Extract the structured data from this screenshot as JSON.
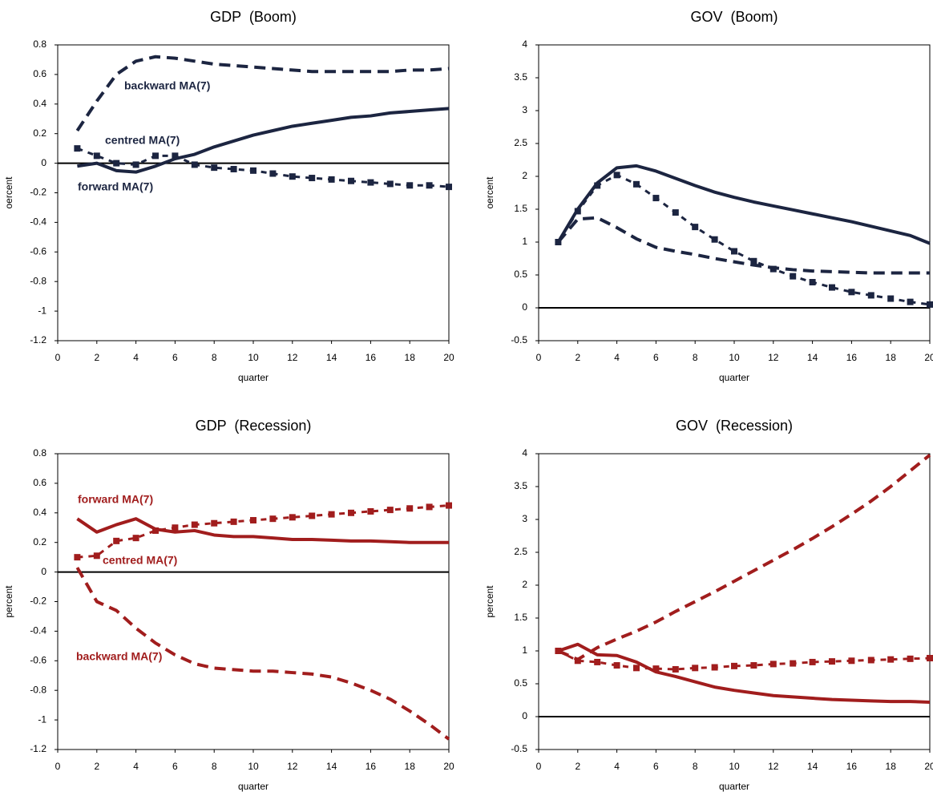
{
  "chart_data": [
    {
      "type": "line",
      "title": "GDP  (Boom)",
      "x_label": "quarter",
      "y_label": "oercent",
      "x": [
        1,
        2,
        3,
        4,
        5,
        6,
        7,
        8,
        9,
        10,
        11,
        12,
        13,
        14,
        15,
        16,
        17,
        18,
        19,
        20
      ],
      "xlim": [
        0,
        20
      ],
      "xticks": [
        0,
        2,
        4,
        6,
        8,
        10,
        12,
        14,
        16,
        18,
        20
      ],
      "ylim": [
        -1.2,
        0.8
      ],
      "yticks": [
        -1.2,
        -1,
        -0.8,
        -0.6,
        -0.4,
        -0.2,
        0,
        0.2,
        0.4,
        0.6,
        0.8
      ],
      "series": [
        {
          "name": "backward MA(7)",
          "color": "#1c2541",
          "line_style": "dashed",
          "values": [
            0.22,
            0.42,
            0.6,
            0.69,
            0.72,
            0.71,
            0.69,
            0.67,
            0.66,
            0.65,
            0.64,
            0.63,
            0.62,
            0.62,
            0.62,
            0.62,
            0.62,
            0.63,
            0.63,
            0.64
          ]
        },
        {
          "name": "centred MA(7)",
          "color": "#1c2541",
          "line_style": "dotted-square",
          "values": [
            0.1,
            0.05,
            0.0,
            -0.01,
            0.05,
            0.05,
            -0.01,
            -0.03,
            -0.04,
            -0.05,
            -0.07,
            -0.09,
            -0.1,
            -0.11,
            -0.12,
            -0.13,
            -0.14,
            -0.15,
            -0.15,
            -0.16
          ]
        },
        {
          "name": "forward MA(7)",
          "color": "#1c2541",
          "line_style": "solid",
          "values": [
            -0.02,
            0.0,
            -0.05,
            -0.06,
            -0.02,
            0.03,
            0.06,
            0.11,
            0.15,
            0.19,
            0.22,
            0.25,
            0.27,
            0.29,
            0.31,
            0.32,
            0.34,
            0.35,
            0.36,
            0.37
          ]
        }
      ]
    },
    {
      "type": "line",
      "title": "GOV  (Boom)",
      "x_label": "quarter",
      "y_label": "oercent",
      "x": [
        1,
        2,
        3,
        4,
        5,
        6,
        7,
        8,
        9,
        10,
        11,
        12,
        13,
        14,
        15,
        16,
        17,
        18,
        19,
        20
      ],
      "xlim": [
        0,
        20
      ],
      "xticks": [
        0,
        2,
        4,
        6,
        8,
        10,
        12,
        14,
        16,
        18,
        20
      ],
      "ylim": [
        -0.5,
        4
      ],
      "yticks": [
        -0.5,
        0,
        0.5,
        1,
        1.5,
        2,
        2.5,
        3,
        3.5,
        4
      ],
      "series": [
        {
          "color": "#1c2541",
          "line_style": "solid",
          "values": [
            1,
            1.5,
            1.9,
            2.13,
            2.16,
            2.08,
            1.97,
            1.86,
            1.76,
            1.68,
            1.61,
            1.55,
            1.49,
            1.43,
            1.37,
            1.31,
            1.24,
            1.17,
            1.1,
            0.98
          ]
        },
        {
          "color": "#1c2541",
          "line_style": "dotted-square",
          "values": [
            1,
            1.47,
            1.86,
            2.02,
            1.88,
            1.67,
            1.45,
            1.23,
            1.04,
            0.86,
            0.71,
            0.59,
            0.48,
            0.39,
            0.31,
            0.24,
            0.19,
            0.14,
            0.09,
            0.05
          ]
        },
        {
          "color": "#1c2541",
          "line_style": "dashed",
          "values": [
            1,
            1.35,
            1.37,
            1.22,
            1.05,
            0.92,
            0.86,
            0.81,
            0.75,
            0.7,
            0.65,
            0.61,
            0.58,
            0.56,
            0.55,
            0.54,
            0.53,
            0.53,
            0.53,
            0.53
          ]
        }
      ]
    },
    {
      "type": "line",
      "title": "GDP  (Recession)",
      "x_label": "quarter",
      "y_label": "percent",
      "x": [
        1,
        2,
        3,
        4,
        5,
        6,
        7,
        8,
        9,
        10,
        11,
        12,
        13,
        14,
        15,
        16,
        17,
        18,
        19,
        20
      ],
      "xlim": [
        0,
        20
      ],
      "xticks": [
        0,
        2,
        4,
        6,
        8,
        10,
        12,
        14,
        16,
        18,
        20
      ],
      "ylim": [
        -1.2,
        0.8
      ],
      "yticks": [
        -1.2,
        -1,
        -0.8,
        -0.6,
        -0.4,
        -0.2,
        0,
        0.2,
        0.4,
        0.6,
        0.8
      ],
      "series": [
        {
          "name": "forward MA(7)",
          "color": "#a11d1d",
          "line_style": "solid",
          "values": [
            0.36,
            0.27,
            0.32,
            0.36,
            0.29,
            0.27,
            0.28,
            0.25,
            0.24,
            0.24,
            0.23,
            0.22,
            0.22,
            0.215,
            0.21,
            0.21,
            0.205,
            0.2,
            0.2,
            0.2
          ]
        },
        {
          "name": "centred MA(7)",
          "color": "#a11d1d",
          "line_style": "dotted-square",
          "values": [
            0.1,
            0.11,
            0.21,
            0.23,
            0.28,
            0.3,
            0.32,
            0.33,
            0.34,
            0.35,
            0.36,
            0.37,
            0.38,
            0.39,
            0.4,
            0.41,
            0.42,
            0.43,
            0.44,
            0.45
          ]
        },
        {
          "name": "backward MA(7)",
          "color": "#a11d1d",
          "line_style": "dashed",
          "values": [
            0.03,
            -0.2,
            -0.26,
            -0.38,
            -0.48,
            -0.56,
            -0.62,
            -0.65,
            -0.66,
            -0.67,
            -0.67,
            -0.68,
            -0.69,
            -0.71,
            -0.75,
            -0.8,
            -0.86,
            -0.94,
            -1.03,
            -1.13
          ]
        }
      ]
    },
    {
      "type": "line",
      "title": "GOV  (Recession)",
      "x_label": "quarter",
      "y_label": "percent",
      "x": [
        1,
        2,
        3,
        4,
        5,
        6,
        7,
        8,
        9,
        10,
        11,
        12,
        13,
        14,
        15,
        16,
        17,
        18,
        19,
        20
      ],
      "xlim": [
        0,
        20
      ],
      "xticks": [
        0,
        2,
        4,
        6,
        8,
        10,
        12,
        14,
        16,
        18,
        20
      ],
      "ylim": [
        -0.5,
        4
      ],
      "yticks": [
        -0.5,
        0,
        0.5,
        1,
        1.5,
        2,
        2.5,
        3,
        3.5,
        4
      ],
      "series": [
        {
          "color": "#a11d1d",
          "line_style": "dashed",
          "values": [
            1,
            0.87,
            1.05,
            1.18,
            1.3,
            1.44,
            1.6,
            1.75,
            1.9,
            2.06,
            2.22,
            2.38,
            2.54,
            2.71,
            2.89,
            3.08,
            3.28,
            3.5,
            3.74,
            3.98
          ]
        },
        {
          "color": "#a11d1d",
          "line_style": "dotted-square",
          "values": [
            1,
            0.85,
            0.83,
            0.78,
            0.74,
            0.73,
            0.72,
            0.74,
            0.75,
            0.77,
            0.78,
            0.8,
            0.81,
            0.83,
            0.84,
            0.85,
            0.86,
            0.87,
            0.88,
            0.89
          ]
        },
        {
          "color": "#a11d1d",
          "line_style": "solid",
          "values": [
            1,
            1.1,
            0.94,
            0.93,
            0.83,
            0.68,
            0.61,
            0.53,
            0.45,
            0.4,
            0.36,
            0.32,
            0.3,
            0.28,
            0.26,
            0.25,
            0.24,
            0.23,
            0.23,
            0.22
          ]
        }
      ]
    }
  ]
}
